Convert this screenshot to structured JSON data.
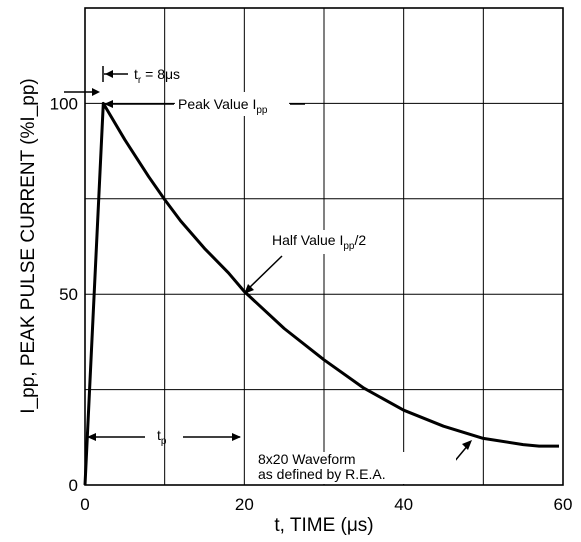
{
  "chart_data": {
    "type": "line",
    "xlabel": "t, TIME (μs)",
    "ylabel": "I_pp, PEAK PULSE CURRENT (%I_pp)",
    "xlim": [
      0,
      60
    ],
    "ylim": [
      0,
      125
    ],
    "x_ticks": [
      "0",
      "20",
      "40",
      "60"
    ],
    "y_ticks": [
      "0",
      "50",
      "100"
    ],
    "grid": true,
    "series": [
      {
        "x": [
          0,
          2.3,
          5,
          8,
          10,
          12,
          15,
          18,
          20,
          25,
          30,
          35,
          40,
          45,
          50,
          55,
          57,
          59.5
        ],
        "y": [
          0,
          100,
          90.5,
          80.8,
          74.8,
          69.2,
          62,
          55.6,
          50.7,
          41,
          32.8,
          25.4,
          19.6,
          15.4,
          12.2,
          10.6,
          10.2,
          10.2
        ]
      }
    ],
    "annotations": {
      "rise_time": {
        "main": "t",
        "sub": "r",
        "suffix": " = 8μs"
      },
      "peak_value": {
        "main": "Peak Value I",
        "sub": "pp"
      },
      "half_value": {
        "main": "Half Value I",
        "sub": "pp",
        "suffix": "/2"
      },
      "pulse_width": {
        "main": "t",
        "sub": "p"
      },
      "waveform_line1": "8x20 Waveform",
      "waveform_line2": "as defined by R.E.A."
    }
  }
}
